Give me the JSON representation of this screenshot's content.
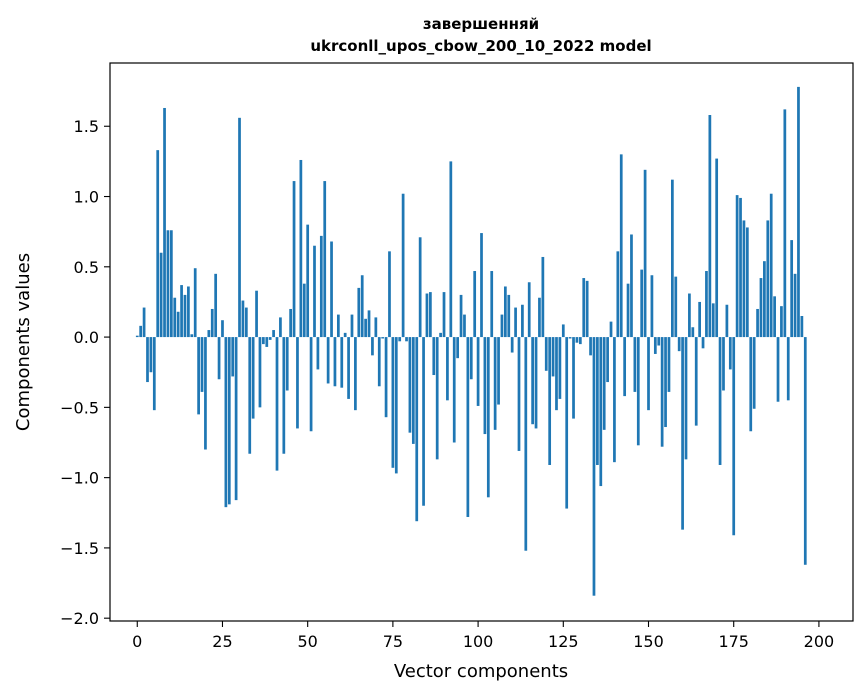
{
  "chart_data": {
    "type": "bar",
    "title": "завершенняй",
    "subtitle": "ukrconll_upos_cbow_200_10_2022 model",
    "xlabel": "Vector components",
    "ylabel": "Components values",
    "xlim": [
      -8,
      210
    ],
    "ylim": [
      -2.02,
      1.95
    ],
    "xticks": [
      0,
      25,
      50,
      75,
      100,
      125,
      150,
      175,
      200
    ],
    "yticks": [
      -2.0,
      -1.5,
      -1.0,
      -0.5,
      0.0,
      0.5,
      1.0,
      1.5
    ],
    "xtick_labels": [
      "0",
      "25",
      "50",
      "75",
      "100",
      "125",
      "150",
      "175",
      "200"
    ],
    "ytick_labels": [
      "−2.0",
      "−1.5",
      "−1.0",
      "−0.5",
      "0.0",
      "0.5",
      "1.0",
      "1.5"
    ],
    "bar_color": "#1f77b4",
    "grid": false,
    "values": [
      0.01,
      0.08,
      0.21,
      -0.32,
      -0.25,
      -0.52,
      1.33,
      0.6,
      1.63,
      0.76,
      0.76,
      0.28,
      0.18,
      0.37,
      0.3,
      0.36,
      0.02,
      0.49,
      -0.55,
      -0.39,
      -0.8,
      0.05,
      0.2,
      0.45,
      -0.3,
      0.12,
      -1.21,
      -1.19,
      -0.28,
      -1.16,
      1.56,
      0.26,
      0.21,
      -0.83,
      -0.58,
      0.33,
      -0.5,
      -0.05,
      -0.07,
      -0.02,
      0.05,
      -0.95,
      0.14,
      -0.83,
      -0.38,
      0.2,
      1.11,
      -0.65,
      1.26,
      0.38,
      0.8,
      -0.67,
      0.65,
      -0.23,
      0.72,
      1.11,
      -0.33,
      0.68,
      -0.35,
      0.16,
      -0.36,
      0.03,
      -0.44,
      0.16,
      -0.52,
      0.35,
      0.44,
      0.13,
      0.19,
      -0.13,
      0.14,
      -0.35,
      -0.01,
      -0.57,
      0.61,
      -0.93,
      -0.97,
      -0.03,
      1.02,
      -0.03,
      -0.68,
      -0.76,
      -1.31,
      0.71,
      -1.2,
      0.31,
      0.32,
      -0.27,
      -0.87,
      0.03,
      0.32,
      -0.45,
      1.25,
      -0.75,
      -0.15,
      0.3,
      0.16,
      -1.28,
      -0.3,
      0.47,
      -0.49,
      0.74,
      -0.69,
      -1.14,
      0.47,
      -0.66,
      -0.48,
      0.16,
      0.36,
      0.3,
      -0.11,
      0.21,
      -0.81,
      0.23,
      -1.52,
      0.39,
      -0.62,
      -0.65,
      0.28,
      0.57,
      -0.24,
      -0.91,
      -0.28,
      -0.52,
      -0.44,
      0.09,
      -1.22,
      -0.01,
      -0.58,
      -0.04,
      -0.05,
      0.42,
      0.4,
      -0.13,
      -1.84,
      -0.91,
      -1.06,
      -0.66,
      -0.32,
      0.11,
      -0.89,
      0.61,
      1.3,
      -0.42,
      0.38,
      0.73,
      -0.39,
      -0.77,
      0.48,
      1.19,
      -0.52,
      0.44,
      -0.12,
      -0.06,
      -0.78,
      -0.64,
      -0.39,
      1.12,
      0.43,
      -0.1,
      -1.37,
      -0.87,
      0.31,
      0.07,
      -0.63,
      0.25,
      -0.08,
      0.47,
      1.58,
      0.24,
      1.27,
      -0.91,
      -0.38,
      0.23,
      -0.23,
      -1.41,
      1.01,
      0.99,
      0.83,
      0.78,
      -0.67,
      -0.51,
      0.2,
      0.42,
      0.54,
      0.83,
      1.02,
      0.29,
      -0.46,
      0.22,
      1.62,
      -0.45,
      0.69,
      0.45,
      1.78,
      0.15,
      -1.62
    ]
  }
}
